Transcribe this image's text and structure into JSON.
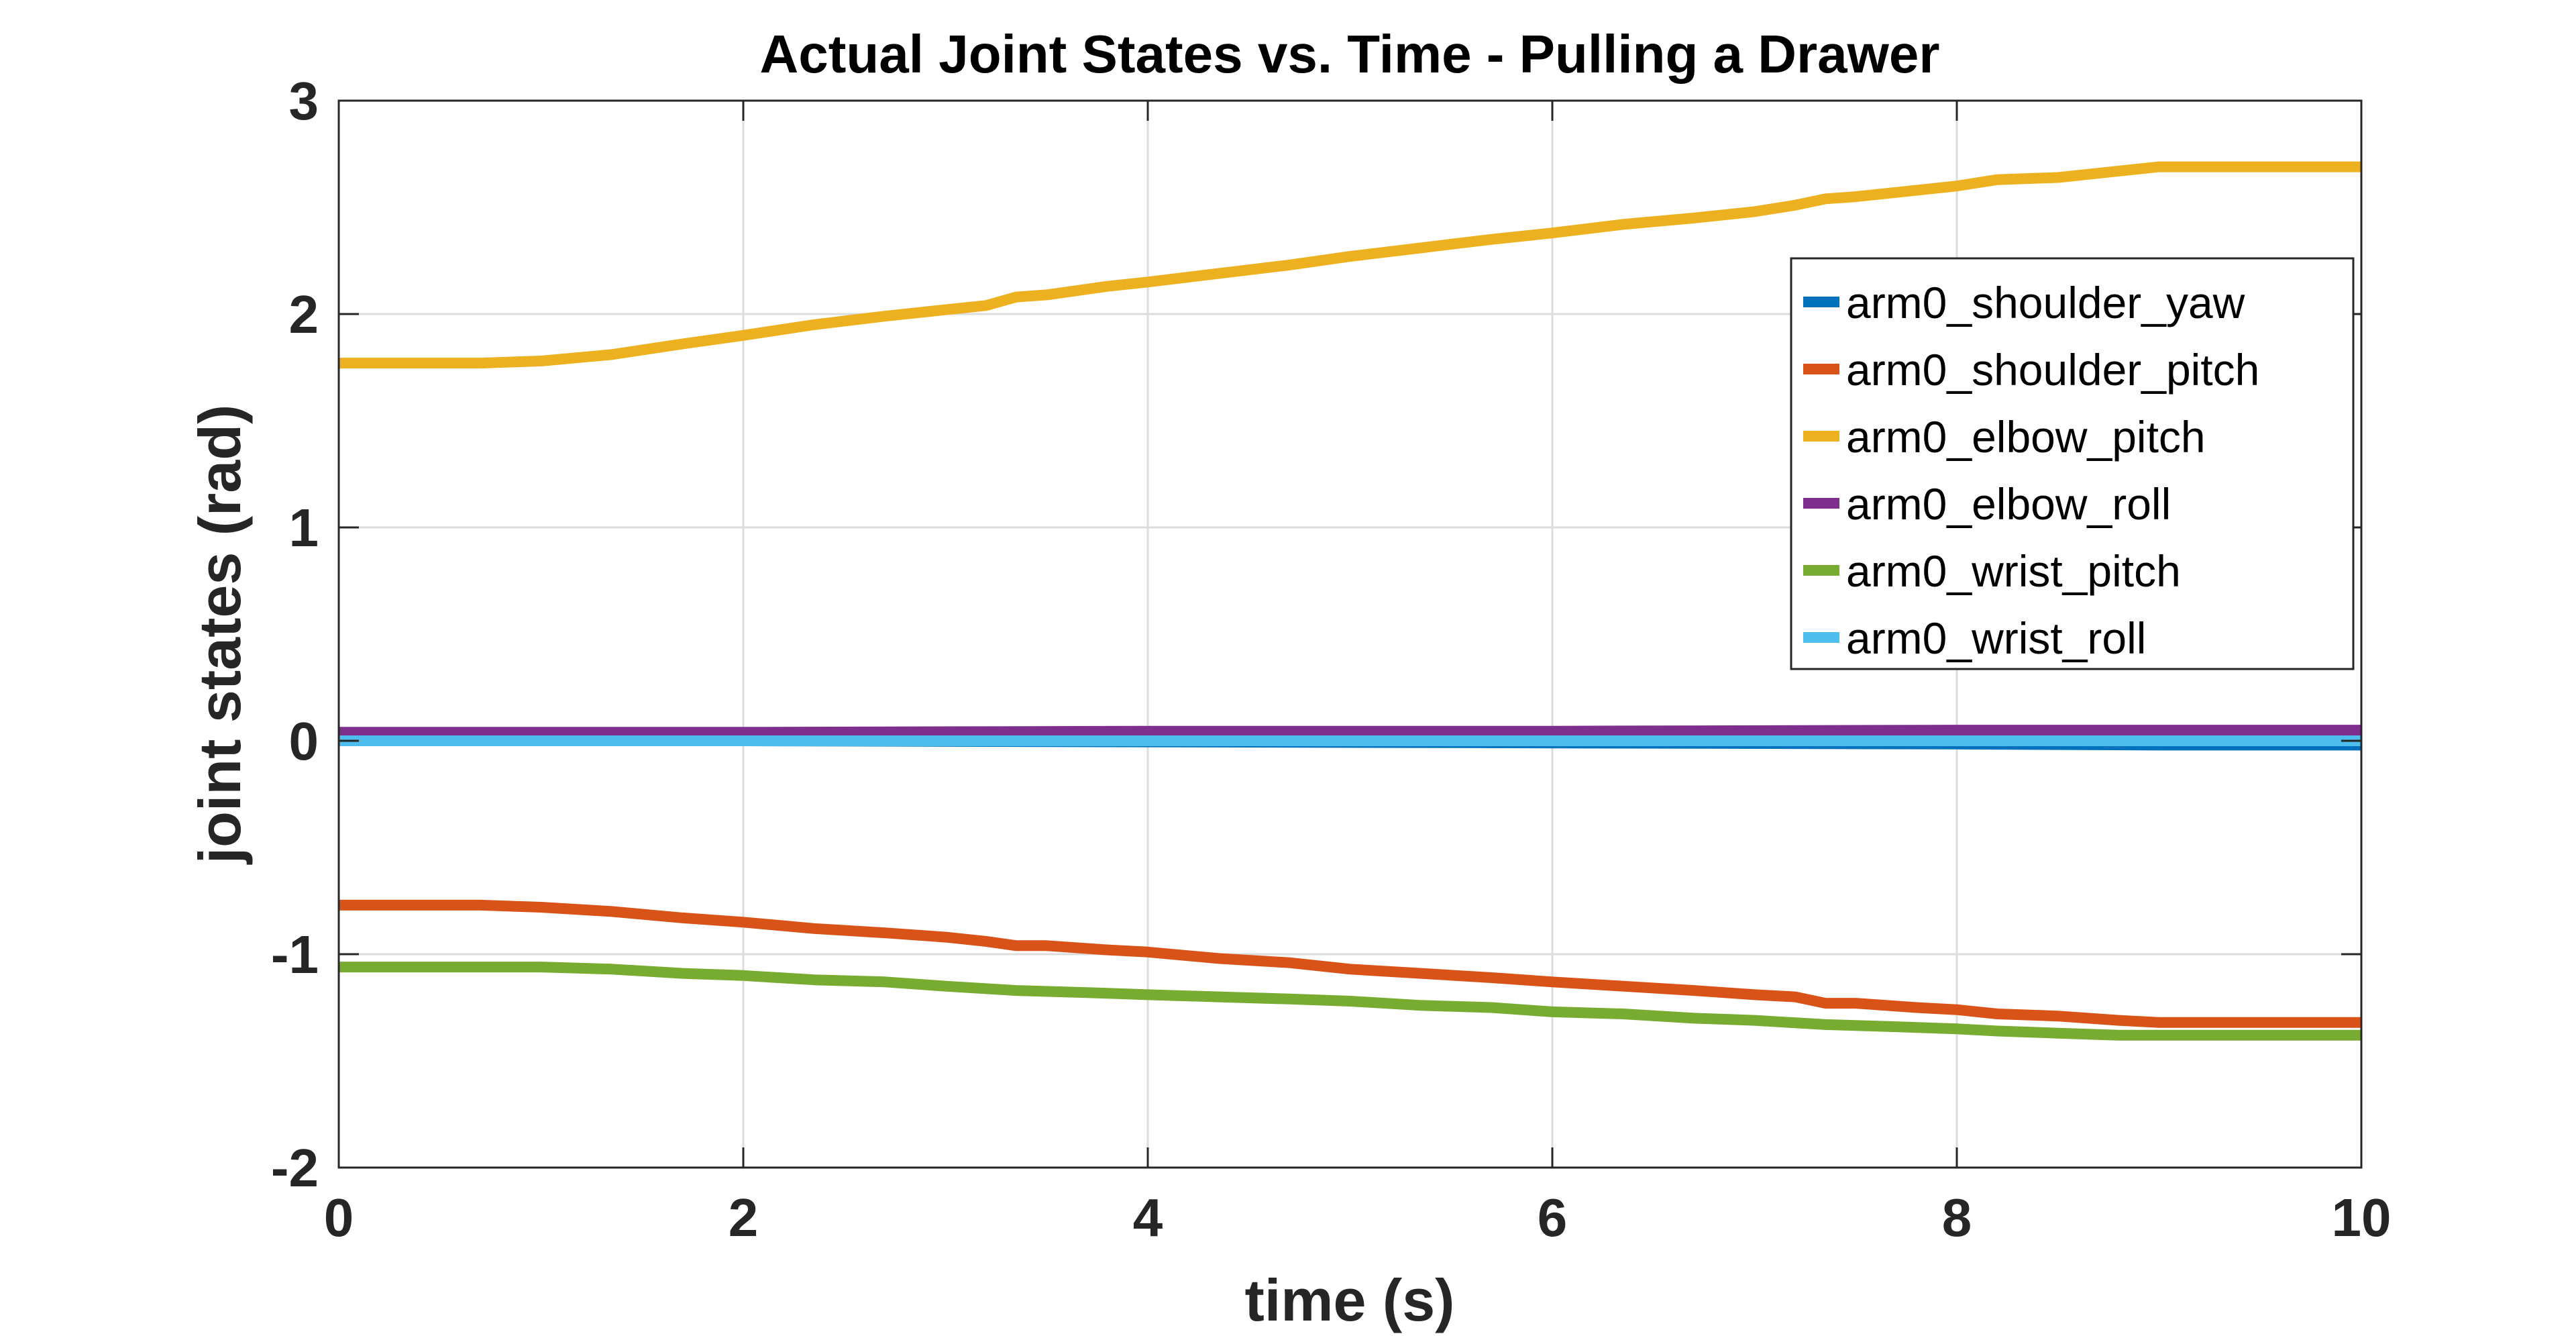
{
  "chart_data": {
    "type": "line",
    "title": "Actual Joint States vs. Time - Pulling a Drawer",
    "xlabel": "time (s)",
    "ylabel": "joint states (rad)",
    "xlim": [
      0,
      10
    ],
    "ylim": [
      -2,
      3
    ],
    "xticks": [
      0,
      2,
      4,
      6,
      8,
      10
    ],
    "yticks": [
      -2,
      -1,
      0,
      1,
      2,
      3
    ],
    "grid": true,
    "legend_position": "top-right",
    "series": [
      {
        "name": "arm0_shoulder_yaw",
        "color": "#0072BD",
        "x": [
          0,
          2,
          4,
          6,
          8,
          9,
          10
        ],
        "y": [
          0.0,
          0.0,
          -0.005,
          -0.01,
          -0.015,
          -0.02,
          -0.02
        ]
      },
      {
        "name": "arm0_shoulder_pitch",
        "color": "#D95319",
        "x": [
          0,
          0.7,
          1.0,
          1.35,
          1.7,
          2.0,
          2.35,
          2.7,
          3.0,
          3.2,
          3.35,
          3.5,
          3.8,
          4.0,
          4.35,
          4.7,
          5.0,
          5.35,
          5.7,
          6.0,
          6.35,
          6.7,
          7.0,
          7.2,
          7.35,
          7.5,
          7.8,
          8.0,
          8.2,
          8.5,
          8.8,
          9.0,
          9.5,
          10.0
        ],
        "y": [
          -0.77,
          -0.77,
          -0.78,
          -0.8,
          -0.83,
          -0.85,
          -0.88,
          -0.9,
          -0.92,
          -0.94,
          -0.96,
          -0.96,
          -0.98,
          -0.99,
          -1.02,
          -1.04,
          -1.07,
          -1.09,
          -1.11,
          -1.13,
          -1.15,
          -1.17,
          -1.19,
          -1.2,
          -1.23,
          -1.23,
          -1.25,
          -1.26,
          -1.28,
          -1.29,
          -1.31,
          -1.32,
          -1.32,
          -1.32
        ]
      },
      {
        "name": "arm0_elbow_pitch",
        "color": "#EDB120",
        "x": [
          0,
          0.7,
          1.0,
          1.35,
          1.7,
          2.0,
          2.35,
          2.7,
          3.0,
          3.2,
          3.35,
          3.5,
          3.8,
          4.0,
          4.35,
          4.7,
          5.0,
          5.35,
          5.7,
          6.0,
          6.35,
          6.7,
          7.0,
          7.2,
          7.35,
          7.5,
          7.8,
          8.0,
          8.2,
          8.5,
          8.8,
          9.0,
          9.5,
          10.0
        ],
        "y": [
          1.77,
          1.77,
          1.78,
          1.81,
          1.86,
          1.9,
          1.95,
          1.99,
          2.02,
          2.04,
          2.08,
          2.09,
          2.13,
          2.15,
          2.19,
          2.23,
          2.27,
          2.31,
          2.35,
          2.38,
          2.42,
          2.45,
          2.48,
          2.51,
          2.54,
          2.55,
          2.58,
          2.6,
          2.63,
          2.64,
          2.67,
          2.69,
          2.69,
          2.69
        ]
      },
      {
        "name": "arm0_elbow_roll",
        "color": "#7E2F8E",
        "x": [
          0,
          2,
          4,
          6,
          8,
          10
        ],
        "y": [
          0.04,
          0.04,
          0.045,
          0.045,
          0.05,
          0.05
        ]
      },
      {
        "name": "arm0_wrist_pitch",
        "color": "#77AC30",
        "x": [
          0,
          0.7,
          1.0,
          1.35,
          1.7,
          2.0,
          2.35,
          2.7,
          3.0,
          3.35,
          3.7,
          4.0,
          4.35,
          4.7,
          5.0,
          5.35,
          5.7,
          6.0,
          6.35,
          6.7,
          7.0,
          7.35,
          7.7,
          8.0,
          8.2,
          8.5,
          8.8,
          9.0,
          9.5,
          10.0
        ],
        "y": [
          -1.06,
          -1.06,
          -1.06,
          -1.07,
          -1.09,
          -1.1,
          -1.12,
          -1.13,
          -1.15,
          -1.17,
          -1.18,
          -1.19,
          -1.2,
          -1.21,
          -1.22,
          -1.24,
          -1.25,
          -1.27,
          -1.28,
          -1.3,
          -1.31,
          -1.33,
          -1.34,
          -1.35,
          -1.36,
          -1.37,
          -1.38,
          -1.38,
          -1.38,
          -1.38
        ]
      },
      {
        "name": "arm0_wrist_roll",
        "color": "#4DBEEE",
        "x": [
          0,
          2,
          4,
          6,
          8,
          10
        ],
        "y": [
          0.0,
          0.0,
          0.0,
          0.0,
          0.0,
          0.0
        ]
      }
    ]
  }
}
